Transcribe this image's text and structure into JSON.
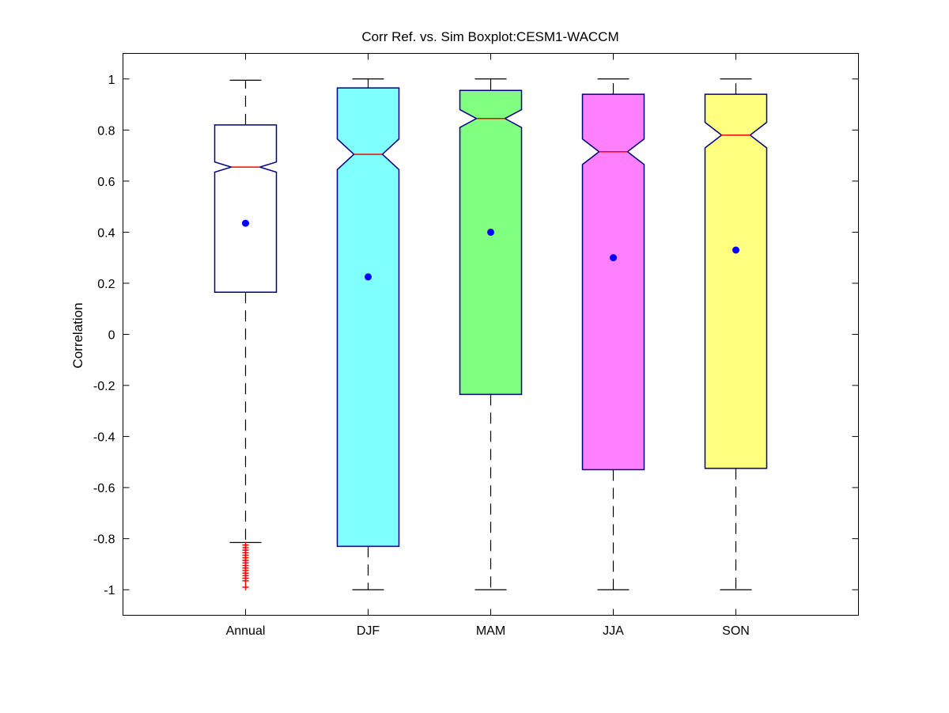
{
  "chart_data": {
    "type": "boxplot",
    "title": "Corr Ref. vs. Sim Boxplot:CESM1-WACCM",
    "xlabel": "",
    "ylabel": "Correlation",
    "ylim": [
      -1.1,
      1.1
    ],
    "yticks": [
      1,
      0.8,
      0.6,
      0.4,
      0.2,
      0,
      -0.2,
      -0.4,
      -0.6,
      -0.8,
      -1
    ],
    "ytick_labels": [
      "1",
      "0.8",
      "0.6",
      "0.4",
      "0.2",
      "0",
      "-0.2",
      "-0.4",
      "-0.6",
      "-0.8",
      "-1"
    ],
    "notched": true,
    "grid": false,
    "categories": [
      "Annual",
      "DJF",
      "MAM",
      "JJA",
      "SON"
    ],
    "boxes": [
      {
        "category": "Annual",
        "whisker_low": -0.815,
        "q1": 0.165,
        "median": 0.655,
        "q3": 0.82,
        "whisker_high": 0.995,
        "notch_low": 0.635,
        "notch_high": 0.675,
        "mean": 0.435,
        "fill": "#ffffff",
        "outliers": [
          -0.825,
          -0.835,
          -0.845,
          -0.855,
          -0.865,
          -0.875,
          -0.885,
          -0.895,
          -0.905,
          -0.915,
          -0.925,
          -0.935,
          -0.945,
          -0.955,
          -0.965,
          -0.99
        ]
      },
      {
        "category": "DJF",
        "whisker_low": -1.0,
        "q1": -0.83,
        "median": 0.705,
        "q3": 0.965,
        "whisker_high": 1.0,
        "notch_low": 0.645,
        "notch_high": 0.765,
        "mean": 0.225,
        "fill": "#80ffff",
        "outliers": []
      },
      {
        "category": "MAM",
        "whisker_low": -1.0,
        "q1": -0.235,
        "median": 0.845,
        "q3": 0.955,
        "whisker_high": 1.0,
        "notch_low": 0.81,
        "notch_high": 0.88,
        "mean": 0.4,
        "fill": "#80ff80",
        "outliers": []
      },
      {
        "category": "JJA",
        "whisker_low": -1.0,
        "q1": -0.53,
        "median": 0.715,
        "q3": 0.94,
        "whisker_high": 1.0,
        "notch_low": 0.665,
        "notch_high": 0.765,
        "mean": 0.3,
        "fill": "#ff80ff",
        "outliers": []
      },
      {
        "category": "SON",
        "whisker_low": -1.0,
        "q1": -0.525,
        "median": 0.78,
        "q3": 0.94,
        "whisker_high": 1.0,
        "notch_low": 0.73,
        "notch_high": 0.83,
        "mean": 0.33,
        "fill": "#ffff80",
        "outliers": []
      }
    ],
    "colors": {
      "box_edge": "#000080",
      "median": "#ff0000",
      "mean_marker": "#0000ff",
      "whisker": "#000000",
      "outlier": "#ff0000"
    }
  }
}
